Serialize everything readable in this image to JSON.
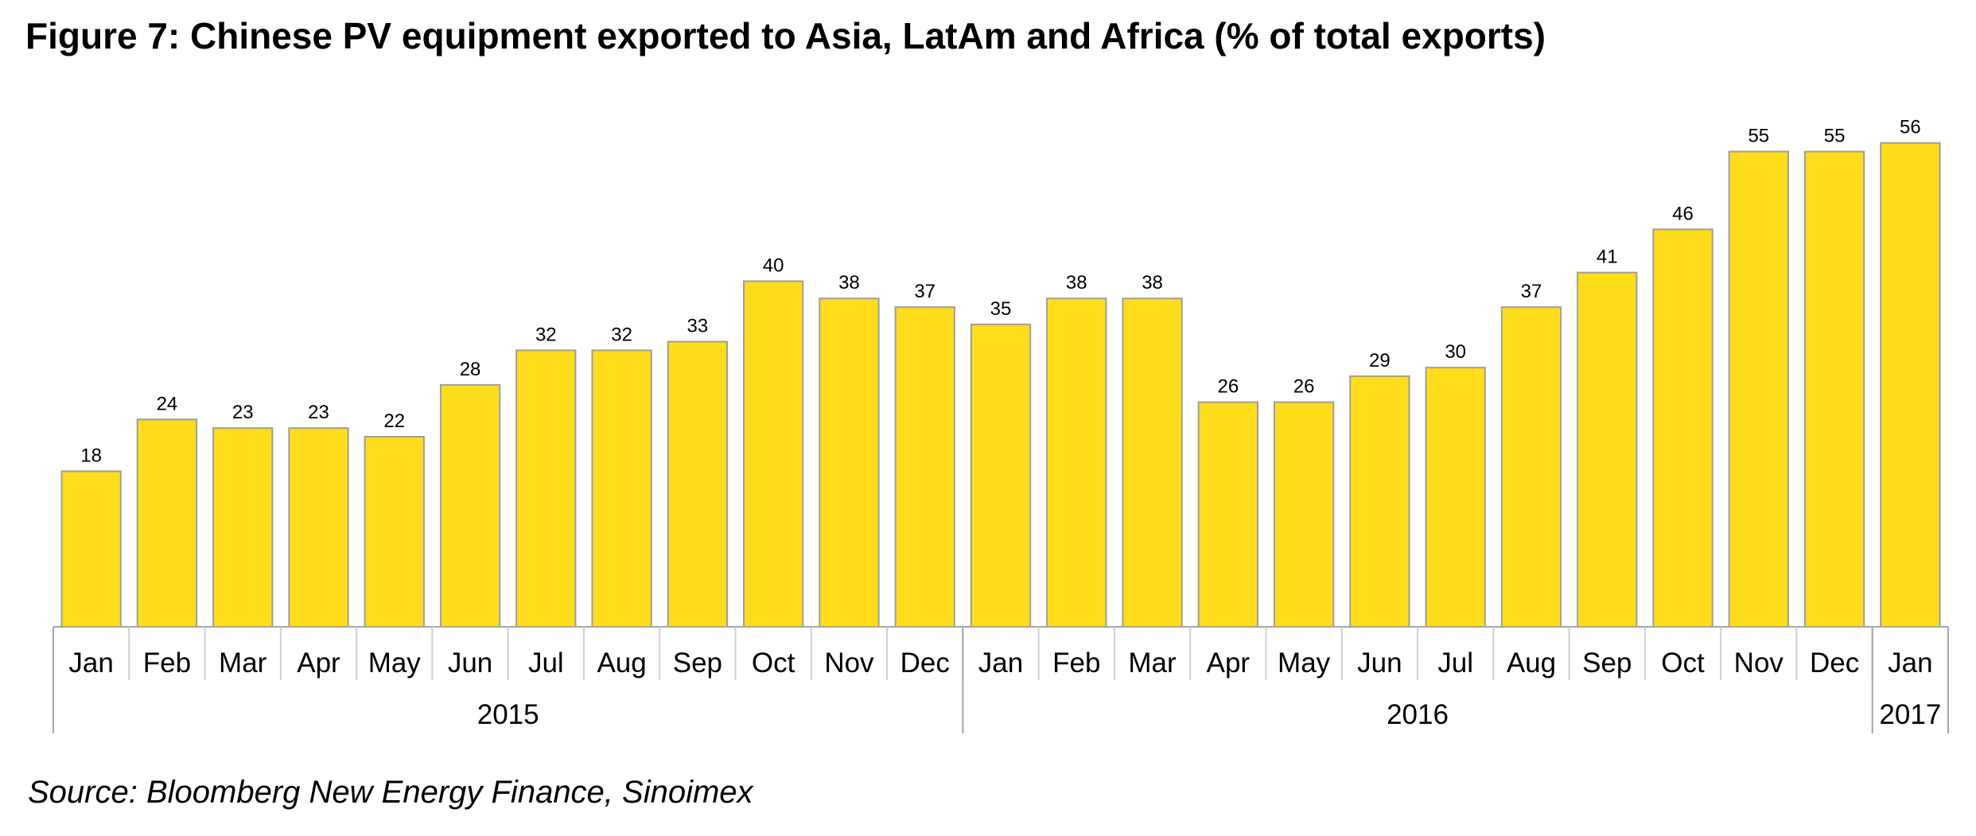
{
  "title": "Figure 7: Chinese PV equipment exported to Asia, LatAm and Africa (% of total exports)",
  "source": "Source: Bloomberg New Energy Finance, Sinoimex",
  "chart_data": {
    "type": "bar",
    "title": "Figure 7: Chinese PV equipment exported to Asia, LatAm and Africa (% of total exports)",
    "categories": [
      "Jan",
      "Feb",
      "Mar",
      "Apr",
      "May",
      "Jun",
      "Jul",
      "Aug",
      "Sep",
      "Oct",
      "Nov",
      "Dec",
      "Jan",
      "Feb",
      "Mar",
      "Apr",
      "May",
      "Jun",
      "Jul",
      "Aug",
      "Sep",
      "Oct",
      "Nov",
      "Dec",
      "Jan"
    ],
    "years": [
      {
        "label": "2015",
        "count": 12
      },
      {
        "label": "2016",
        "count": 12
      },
      {
        "label": "2017",
        "count": 1
      }
    ],
    "values": [
      18,
      24,
      23,
      23,
      22,
      28,
      32,
      32,
      33,
      40,
      38,
      37,
      35,
      38,
      38,
      26,
      26,
      29,
      30,
      37,
      41,
      46,
      55,
      55,
      56
    ],
    "data_labels": [
      "18",
      "24",
      "23",
      "23",
      "22",
      "28",
      "32",
      "32",
      "33",
      "40",
      "38",
      "37",
      "35",
      "38",
      "38",
      "26",
      "26",
      "29",
      "30",
      "37",
      "41",
      "46",
      "55",
      "55",
      "56"
    ],
    "ylim": [
      0,
      58
    ],
    "grid": false,
    "legend": "none",
    "bar_color": "#FFDD1A",
    "bar_edge_color": "#9E9E9E"
  }
}
